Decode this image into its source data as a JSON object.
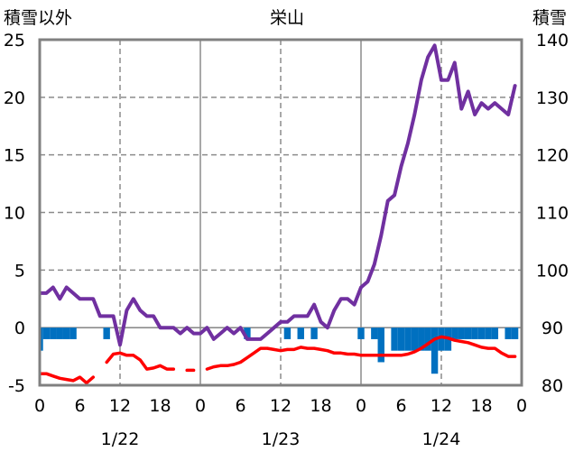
{
  "chart_data": {
    "type": "line",
    "title": "栄山",
    "ylabel": "積雪以外",
    "y2label": "積雪",
    "xlim": [
      0,
      72
    ],
    "ylim": [
      -5,
      25
    ],
    "y2lim": [
      80,
      140
    ],
    "y_ticks": [
      25,
      20,
      15,
      10,
      5,
      0,
      -5
    ],
    "y2_ticks": [
      140,
      130,
      120,
      110,
      100,
      90,
      80
    ],
    "x_tick_hours": [
      0,
      6,
      12,
      18,
      24,
      30,
      36,
      42,
      48,
      54,
      60,
      66,
      72
    ],
    "x_tick_labels": [
      "0",
      "6",
      "12",
      "18",
      "0",
      "6",
      "12",
      "18",
      "0",
      "6",
      "12",
      "18",
      "0"
    ],
    "date_labels": [
      "1/22",
      "1/23",
      "1/24"
    ],
    "date_label_hours": [
      12,
      36,
      60
    ],
    "series": [
      {
        "type": "bar",
        "y_axis": "left",
        "color": "#0070C0",
        "values": [
          -2.0,
          -1.0,
          -1.0,
          -1.0,
          -1.0,
          -1.0,
          0,
          0,
          0,
          0,
          -1.0,
          0,
          0,
          0,
          0,
          0,
          0,
          0,
          0,
          0,
          0,
          0,
          0,
          0,
          0,
          0,
          0,
          0,
          0,
          0,
          0,
          -1.0,
          0,
          0,
          0,
          0,
          0,
          -1.0,
          0,
          -1.0,
          0,
          -1.0,
          0,
          0,
          0,
          0,
          0,
          0,
          -1.0,
          0,
          -1.0,
          -3.0,
          0,
          -2.0,
          -2.0,
          -2.0,
          -2.0,
          -2.0,
          -2.0,
          -4.0,
          -2.0,
          -2.0,
          -1.0,
          -1.0,
          -1.0,
          -1.0,
          -1.0,
          -1.0,
          -1.0,
          0,
          -1.0,
          -1.0
        ]
      },
      {
        "type": "line",
        "y_axis": "left",
        "color": "#FF0000",
        "values": [
          -4.0,
          -4.0,
          -4.2,
          -4.4,
          -4.5,
          -4.6,
          -4.3,
          -4.8,
          -4.3,
          null,
          -3.0,
          -2.3,
          -2.2,
          -2.4,
          -2.4,
          -2.8,
          -3.6,
          -3.5,
          -3.3,
          -3.6,
          -3.6,
          null,
          -3.7,
          -3.7,
          null,
          -3.6,
          -3.4,
          -3.3,
          -3.3,
          -3.2,
          -3.0,
          -2.6,
          -2.2,
          -1.8,
          -1.8,
          -1.9,
          -2.0,
          -1.9,
          -1.9,
          -1.7,
          -1.8,
          -1.8,
          -1.9,
          -2.0,
          -2.2,
          -2.2,
          -2.3,
          -2.3,
          -2.4,
          -2.4,
          -2.4,
          -2.4,
          -2.4,
          -2.4,
          -2.4,
          -2.3,
          -2.1,
          -1.8,
          -1.4,
          -1.0,
          -0.8,
          -0.9,
          -1.1,
          -1.2,
          -1.3,
          -1.5,
          -1.7,
          -1.8,
          -1.8,
          -2.2,
          -2.5,
          -2.5
        ]
      },
      {
        "type": "line",
        "y_axis": "right",
        "color": "#7030A0",
        "values": [
          96,
          96,
          97,
          95,
          97,
          96,
          95,
          95,
          95,
          92,
          92,
          92,
          87,
          93,
          95,
          93,
          92,
          92,
          90,
          90,
          90,
          89,
          90,
          89,
          89,
          90,
          88,
          89,
          90,
          89,
          90,
          88,
          88,
          88,
          89,
          90,
          91,
          91,
          92,
          92,
          92,
          94,
          91,
          90,
          93,
          95,
          95,
          94,
          97,
          98,
          101,
          106,
          112,
          113,
          118,
          122,
          127,
          133,
          137,
          139,
          133,
          133,
          136,
          128,
          131,
          127,
          129,
          128,
          129,
          128,
          127,
          132
        ]
      }
    ]
  }
}
